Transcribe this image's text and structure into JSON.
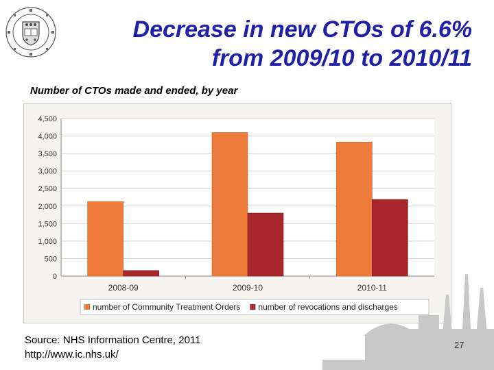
{
  "title_line1": "Decrease in new CTOs of 6.6%",
  "title_line2": "from 2009/10 to 2010/11",
  "subtitle": "Number of CTOs made and ended, by year",
  "source_line1": "Source: NHS Information Centre, 2011",
  "source_line2": "http://www.ic.nhs.uk/",
  "page_number": "27",
  "colors": {
    "title": "#1f1fa8",
    "series_orange": "#ee7b3a",
    "series_red": "#a8272b"
  },
  "chart_data": {
    "type": "bar",
    "title": "",
    "xlabel": "",
    "ylabel": "",
    "categories": [
      "2008-09",
      "2009-10",
      "2010-11"
    ],
    "series": [
      {
        "name": "number of Community Treatment Orders",
        "values": [
          2130,
          4100,
          3830
        ],
        "color": "#ee7b3a"
      },
      {
        "name": "number of revocations and discharges",
        "values": [
          160,
          1800,
          2190
        ],
        "color": "#a8272b"
      }
    ],
    "ylim": [
      0,
      4500
    ],
    "yticks": [
      0,
      500,
      1000,
      1500,
      2000,
      2500,
      3000,
      3500,
      4000,
      4500
    ],
    "ytick_labels": [
      "0",
      "500",
      "1,000",
      "1,500",
      "2,000",
      "2,500",
      "3,000",
      "3,500",
      "4,000",
      "4,500"
    ],
    "grid": true,
    "legend": "bottom"
  }
}
